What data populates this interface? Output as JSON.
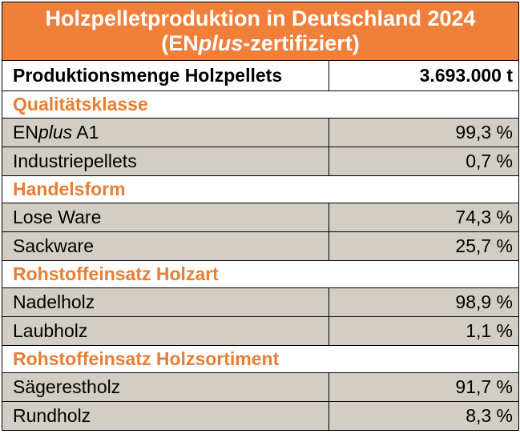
{
  "title": {
    "line1": "Holzpelletproduktion in Deutschland 2024",
    "line2_prefix": "(EN",
    "line2_italic": "plus",
    "line2_suffix": "-zertifiziert)"
  },
  "production": {
    "label": "Produktionsmenge Holzpellets",
    "value": "3.693.000 t"
  },
  "sections": [
    {
      "heading": "Qualitätsklasse",
      "rows": [
        {
          "label_prefix": "EN",
          "label_italic": "plus",
          "label_suffix": " A1",
          "value": "99,3 %"
        },
        {
          "label_prefix": "Industriepellets",
          "label_italic": "",
          "label_suffix": "",
          "value": "0,7 %"
        }
      ]
    },
    {
      "heading": "Handelsform",
      "rows": [
        {
          "label_prefix": "Lose Ware",
          "label_italic": "",
          "label_suffix": "",
          "value": "74,3 %"
        },
        {
          "label_prefix": "Sackware",
          "label_italic": "",
          "label_suffix": "",
          "value": "25,7 %"
        }
      ]
    },
    {
      "heading": "Rohstoffeinsatz Holzart",
      "rows": [
        {
          "label_prefix": "Nadelholz",
          "label_italic": "",
          "label_suffix": "",
          "value": "98,9 %"
        },
        {
          "label_prefix": "Laubholz",
          "label_italic": "",
          "label_suffix": "",
          "value": "1,1 %"
        }
      ]
    },
    {
      "heading": "Rohstoffeinsatz Holzsortiment",
      "rows": [
        {
          "label_prefix": "Sägerestholz",
          "label_italic": "",
          "label_suffix": "",
          "value": "91,7 %"
        },
        {
          "label_prefix": "Rundholz",
          "label_italic": "",
          "label_suffix": "",
          "value": "8,3 %"
        }
      ]
    }
  ],
  "colors": {
    "title_background": "#f07f3a",
    "section_heading": "#e87d33",
    "data_row_background": "#d2cec5",
    "border": "#000000"
  }
}
